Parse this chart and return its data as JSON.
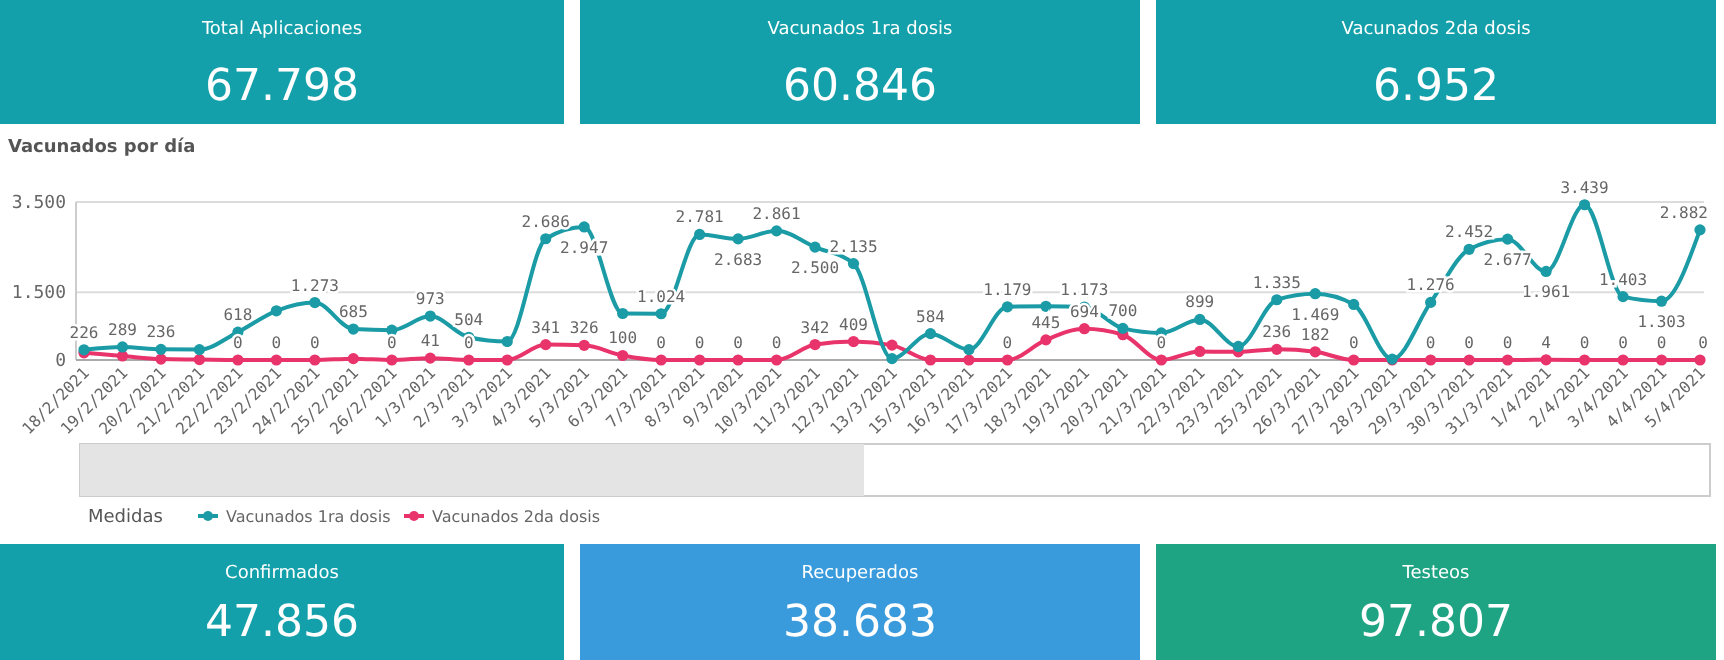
{
  "chart_data": [
    {
      "type": "other",
      "title": "Total Aplicaciones",
      "annotations": [
        "67.798"
      ],
      "color": "#14a0aa"
    },
    {
      "type": "other",
      "title": "Vacunados 1ra dosis",
      "annotations": [
        "60.846"
      ],
      "color": "#14a0aa"
    },
    {
      "type": "other",
      "title": "Vacunados 2da dosis",
      "annotations": [
        "6.952"
      ],
      "color": "#14a0aa"
    },
    {
      "type": "line",
      "title": "Vacunados por día",
      "legend_title": "Medidas",
      "legend": "bottom",
      "grid": "y",
      "marker": "circle",
      "categories": [
        "18/2/2021",
        "19/2/2021",
        "20/2/2021",
        "21/2/2021",
        "22/2/2021",
        "23/2/2021",
        "24/2/2021",
        "25/2/2021",
        "26/2/2021",
        "1/3/2021",
        "2/3/2021",
        "3/3/2021",
        "4/3/2021",
        "5/3/2021",
        "6/3/2021",
        "7/3/2021",
        "8/3/2021",
        "9/3/2021",
        "10/3/2021",
        "11/3/2021",
        "12/3/2021",
        "13/3/2021",
        "15/3/2021",
        "16/3/2021",
        "17/3/2021",
        "18/3/2021",
        "19/3/2021",
        "20/3/2021",
        "21/3/2021",
        "22/3/2021",
        "23/3/2021",
        "25/3/2021",
        "26/3/2021",
        "27/3/2021",
        "28/3/2021",
        "29/3/2021",
        "30/3/2021",
        "31/3/2021",
        "1/4/2021",
        "2/4/2021",
        "3/4/2021",
        "4/4/2021",
        "5/4/2021"
      ],
      "ylim": [
        0,
        3500
      ],
      "yticks": [
        0,
        {
          "value": 1500,
          "label": "1.500"
        },
        {
          "value": 3500,
          "label": "3.500"
        }
      ],
      "series": [
        {
          "name": "Vacunados 1ra dosis",
          "color": "#1a9ba5",
          "values": [
            226,
            289,
            236,
            230,
            618,
            1090,
            1273,
            685,
            660,
            973,
            504,
            410,
            2686,
            2947,
            1030,
            1024,
            2781,
            2683,
            2861,
            2500,
            2135,
            30,
            584,
            230,
            1179,
            1190,
            1173,
            700,
            600,
            899,
            300,
            1335,
            1469,
            1230,
            20,
            1276,
            2452,
            2677,
            1961,
            3439,
            1403,
            1303,
            2882
          ],
          "value_labels": [
            "226",
            "289",
            "236",
            null,
            "618",
            null,
            "1.273",
            "685",
            null,
            "973",
            "504",
            null,
            "2.686",
            "2.947",
            null,
            "1.024",
            "2.781",
            "2.683",
            "2.861",
            "2.500",
            "2.135",
            null,
            "584",
            null,
            "1.179",
            null,
            "1.173",
            "700",
            null,
            "899",
            null,
            "1.335",
            "1.469",
            null,
            null,
            "1.276",
            "2.452",
            "2.677",
            "1.961",
            "3.439",
            "1.403",
            "1.303",
            "2.882"
          ]
        },
        {
          "name": "Vacunados 2da dosis",
          "color": "#e8336b",
          "values": [
            160,
            90,
            20,
            10,
            0,
            0,
            0,
            30,
            0,
            41,
            0,
            0,
            341,
            326,
            100,
            0,
            0,
            0,
            0,
            342,
            409,
            330,
            0,
            0,
            0,
            445,
            694,
            560,
            0,
            190,
            180,
            236,
            182,
            0,
            0,
            0,
            0,
            0,
            4,
            0,
            0,
            0,
            0
          ],
          "value_labels": [
            null,
            null,
            null,
            null,
            "0",
            "0",
            "0",
            null,
            "0",
            "41",
            "0",
            null,
            "341",
            "326",
            "100",
            "0",
            "0",
            "0",
            "0",
            "342",
            "409",
            null,
            null,
            null,
            "0",
            "445",
            "694",
            null,
            "0",
            null,
            null,
            "236",
            "182",
            "0",
            null,
            "0",
            "0",
            "0",
            "4",
            "0",
            "0",
            "0",
            "0"
          ]
        }
      ]
    },
    {
      "type": "other",
      "title": "Confirmados",
      "annotations": [
        "47.856"
      ],
      "color": "#14a0aa"
    },
    {
      "type": "other",
      "title": "Recuperados",
      "annotations": [
        "38.683"
      ],
      "color": "#3a9bdc"
    },
    {
      "type": "other",
      "title": "Testeos",
      "annotations": [
        "97.807"
      ],
      "color": "#1ea383"
    }
  ]
}
